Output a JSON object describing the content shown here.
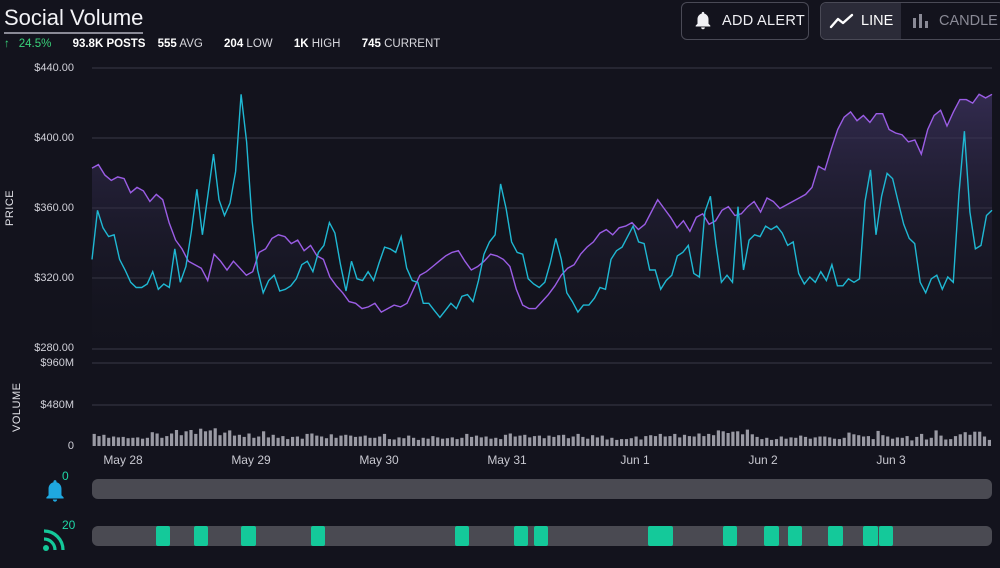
{
  "header": {
    "title": "Social Volume",
    "change_pct": "24.5%",
    "posts_value": "93.8K",
    "posts_label": "POSTS",
    "avg_value": "555",
    "avg_label": "AVG",
    "low_value": "204",
    "low_label": "LOW",
    "high_value": "1K",
    "high_label": "HIGH",
    "current_value": "745",
    "current_label": "CURRENT"
  },
  "toolbar": {
    "add_alert_label": "ADD ALERT",
    "line_label": "LINE",
    "candle_label": "CANDLE"
  },
  "colors": {
    "price_line": "#9b5de5",
    "social_line": "#1fb8d3",
    "volume_bar": "#9a9aa4",
    "event_mark": "#14c99a"
  },
  "price_axis": {
    "title": "PRICE",
    "ticks": [
      "$440.00",
      "$400.00",
      "$360.00",
      "$320.00",
      "$280.00"
    ]
  },
  "volume_axis": {
    "title": "VOLUME",
    "ticks": [
      "$960M",
      "$480M",
      "0"
    ]
  },
  "alerts": {
    "count": "0"
  },
  "feed": {
    "count": "20"
  },
  "chart_data": {
    "type": "line",
    "x_ticks": [
      "May 28",
      "May 29",
      "May 30",
      "May 31",
      "Jun 1",
      "Jun 2",
      "Jun 3"
    ],
    "price_ylim": [
      280,
      440
    ],
    "series": [
      {
        "role": "price",
        "values": [
          383,
          385,
          379,
          376,
          378,
          377,
          369,
          372,
          370,
          364,
          368,
          365,
          352,
          342,
          337,
          330,
          328,
          326,
          319,
          334,
          330,
          325,
          330,
          326,
          322,
          324,
          335,
          337,
          343,
          345,
          344,
          340,
          342,
          336,
          339,
          333,
          331,
          321,
          316,
          312,
          307,
          306,
          303,
          304,
          306,
          301,
          303,
          305,
          304,
          306,
          314,
          322,
          324,
          327,
          330,
          333,
          335,
          336,
          330,
          325,
          327,
          330,
          334,
          333,
          331,
          327,
          314,
          305,
          303,
          303,
          307,
          311,
          316,
          322,
          326,
          328,
          334,
          338,
          341,
          346,
          348,
          345,
          349,
          350,
          352,
          348,
          351,
          358,
          365,
          360,
          355,
          349,
          353,
          347,
          355,
          357,
          351,
          353,
          359,
          361,
          356,
          357,
          361,
          364,
          358,
          366,
          364,
          360,
          362,
          364,
          366,
          368,
          372,
          384,
          382,
          394,
          405,
          412,
          415,
          410,
          413,
          409,
          414,
          414,
          405,
          403,
          402,
          398,
          399,
          391,
          405,
          413,
          416,
          407,
          415,
          422,
          422,
          420,
          425,
          423,
          425
        ]
      },
      {
        "role": "social",
        "values": [
          331,
          359,
          349,
          344,
          345,
          331,
          325,
          318,
          315,
          315,
          317,
          324,
          314,
          317,
          315,
          337,
          318,
          327,
          347,
          371,
          345,
          368,
          391,
          365,
          356,
          363,
          381,
          425,
          398,
          353,
          325,
          312,
          319,
          322,
          313,
          314,
          316,
          320,
          328,
          330,
          324,
          335,
          339,
          352,
          346,
          328,
          313,
          330,
          320,
          319,
          324,
          319,
          329,
          338,
          337,
          335,
          344,
          326,
          319,
          318,
          306,
          306,
          302,
          298,
          302,
          306,
          303,
          310,
          311,
          307,
          319,
          334,
          341,
          345,
          374,
          360,
          341,
          335,
          334,
          320,
          317,
          315,
          318,
          329,
          343,
          331,
          312,
          307,
          301,
          305,
          305,
          309,
          315,
          314,
          331,
          336,
          338,
          344,
          350,
          341,
          340,
          325,
          325,
          314,
          319,
          322,
          333,
          335,
          339,
          323,
          321,
          358,
          367,
          340,
          318,
          322,
          318,
          361,
          325,
          342,
          345,
          344,
          350,
          348,
          350,
          346,
          339,
          341,
          323,
          317,
          321,
          318,
          324,
          319,
          328,
          316,
          316,
          320,
          318,
          320,
          364,
          382,
          345,
          367,
          380,
          377,
          364,
          351,
          343,
          340,
          318,
          312,
          320,
          322,
          314,
          321,
          318,
          368,
          404,
          358,
          337,
          339,
          356,
          359
        ]
      }
    ],
    "volume": {
      "ylim_label": [
        "0",
        "$480M",
        "$960M"
      ],
      "bar_count": 186,
      "values": [
        140,
        115,
        130,
        95,
        110,
        100,
        105,
        90,
        95,
        100,
        85,
        95,
        160,
        145,
        95,
        115,
        145,
        185,
        125,
        170,
        185,
        140,
        200,
        170,
        180,
        205,
        125,
        155,
        180,
        120,
        130,
        105,
        145,
        95,
        110,
        170,
        100,
        130,
        95,
        115,
        80,
        105,
        110,
        85,
        140,
        145,
        120,
        110,
        90,
        135,
        95,
        120,
        130,
        120,
        105,
        110,
        120,
        95,
        95,
        110,
        140,
        80,
        75,
        100,
        90,
        120,
        95,
        70,
        95,
        85,
        115,
        100,
        85,
        90,
        100,
        80,
        95,
        140,
        105,
        120,
        100,
        110,
        85,
        95,
        80,
        130,
        145,
        110,
        120,
        130,
        100,
        115,
        120,
        90,
        120,
        105,
        125,
        130,
        90,
        110,
        140,
        105,
        85,
        125,
        100,
        120,
        75,
        95,
        70,
        80,
        80,
        90,
        110,
        75,
        115,
        125,
        115,
        140,
        110,
        115,
        140,
        100,
        130,
        115,
        110,
        145,
        115,
        140,
        125,
        180,
        170,
        150,
        165,
        170,
        135,
        190,
        135,
        105,
        80,
        95,
        70,
        80,
        110,
        85,
        100,
        95,
        120,
        105,
        85,
        100,
        110,
        110,
        100,
        85,
        80,
        95,
        155,
        135,
        125,
        110,
        115,
        80,
        175,
        125,
        110,
        85,
        100,
        95,
        115,
        65,
        105,
        140,
        75,
        95,
        180,
        120,
        75,
        80,
        115,
        135,
        160,
        130,
        165,
        165,
        110,
        70
      ]
    },
    "alert_markers": [],
    "feed_markers": [
      {
        "start": 0.071,
        "end": 0.087
      },
      {
        "start": 0.113,
        "end": 0.129
      },
      {
        "start": 0.166,
        "end": 0.182
      },
      {
        "start": 0.243,
        "end": 0.259
      },
      {
        "start": 0.403,
        "end": 0.419
      },
      {
        "start": 0.469,
        "end": 0.485
      },
      {
        "start": 0.491,
        "end": 0.507
      },
      {
        "start": 0.618,
        "end": 0.646
      },
      {
        "start": 0.701,
        "end": 0.717
      },
      {
        "start": 0.747,
        "end": 0.763
      },
      {
        "start": 0.773,
        "end": 0.789
      },
      {
        "start": 0.818,
        "end": 0.834
      },
      {
        "start": 0.857,
        "end": 0.873
      },
      {
        "start": 0.874,
        "end": 0.89
      }
    ]
  }
}
